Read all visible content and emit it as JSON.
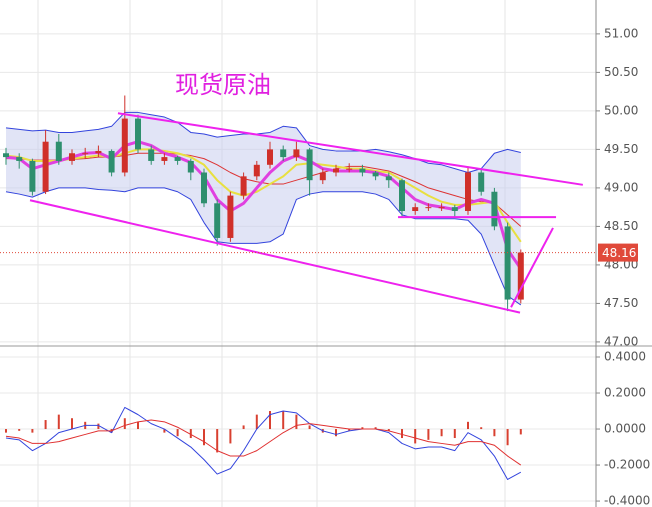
{
  "chart_data": [
    {
      "type": "candlestick",
      "title": "现货原油",
      "title_color": "#e020e0",
      "open": [
        49.45,
        49.4,
        49.35,
        48.95,
        49.6,
        49.35,
        49.45,
        49.45,
        49.48,
        49.2,
        49.9,
        49.5,
        49.35,
        49.4,
        49.35,
        49.2,
        48.8,
        48.35,
        48.9,
        49.15,
        49.3,
        49.5,
        49.4,
        49.5,
        49.1,
        49.2,
        49.25,
        49.25,
        49.2,
        49.15,
        49.1,
        48.7,
        48.75,
        48.75,
        48.75,
        48.7,
        49.2,
        48.95,
        48.5,
        47.55
      ],
      "high": [
        49.52,
        49.45,
        49.38,
        49.75,
        49.7,
        49.5,
        49.52,
        49.55,
        49.5,
        50.2,
        49.95,
        49.55,
        49.45,
        49.42,
        49.38,
        49.25,
        48.85,
        48.95,
        49.2,
        49.35,
        49.6,
        49.55,
        49.6,
        49.52,
        49.25,
        49.3,
        49.32,
        49.3,
        49.22,
        49.2,
        49.12,
        48.8,
        48.8,
        48.8,
        48.78,
        49.28,
        49.25,
        49.0,
        48.55,
        48.2
      ],
      "low": [
        49.3,
        49.25,
        48.9,
        48.92,
        49.3,
        49.3,
        49.38,
        49.4,
        49.15,
        49.15,
        49.45,
        49.3,
        49.3,
        49.3,
        49.1,
        48.75,
        48.25,
        48.3,
        48.85,
        49.1,
        49.25,
        49.35,
        49.35,
        48.9,
        49.05,
        49.15,
        49.2,
        49.15,
        49.1,
        49.0,
        48.62,
        48.65,
        48.7,
        48.7,
        48.62,
        48.65,
        48.9,
        48.45,
        47.4,
        47.5
      ],
      "close": [
        49.4,
        49.35,
        48.95,
        49.6,
        49.35,
        49.45,
        49.45,
        49.48,
        49.2,
        49.9,
        49.5,
        49.35,
        49.4,
        49.35,
        49.2,
        48.8,
        48.35,
        48.9,
        49.15,
        49.3,
        49.5,
        49.4,
        49.5,
        49.1,
        49.2,
        49.25,
        49.25,
        49.2,
        49.15,
        49.1,
        48.7,
        48.75,
        48.75,
        48.75,
        48.7,
        49.2,
        48.95,
        48.5,
        47.55,
        48.16
      ],
      "up_color": "#d0302a",
      "down_color": "#2e8f6e",
      "bands": {
        "color": "#3344dd",
        "fill": "#c9cdee",
        "upper": [
          49.78,
          49.76,
          49.74,
          49.75,
          49.72,
          49.72,
          49.74,
          49.76,
          49.8,
          49.98,
          49.98,
          49.95,
          49.92,
          49.85,
          49.72,
          49.7,
          49.66,
          49.68,
          49.7,
          49.7,
          49.72,
          49.8,
          49.78,
          49.55,
          49.5,
          49.48,
          49.48,
          49.48,
          49.5,
          49.47,
          49.43,
          49.38,
          49.32,
          49.3,
          49.25,
          49.2,
          49.25,
          49.45,
          49.5,
          49.46
        ],
        "lower": [
          48.95,
          48.92,
          48.88,
          48.95,
          49.0,
          49.0,
          49.0,
          48.98,
          48.97,
          48.95,
          49.0,
          49.0,
          49.0,
          48.95,
          48.85,
          48.55,
          48.3,
          48.28,
          48.28,
          48.28,
          48.3,
          48.4,
          48.85,
          48.92,
          48.95,
          48.95,
          48.95,
          48.95,
          48.92,
          48.85,
          48.65,
          48.6,
          48.6,
          48.6,
          48.6,
          48.58,
          48.4,
          48.0,
          47.6,
          47.48
        ]
      },
      "lines": [
        {
          "color": "#d33",
          "width": 1,
          "values": [
            49.38,
            49.38,
            49.36,
            49.36,
            49.36,
            49.37,
            49.38,
            49.4,
            49.4,
            49.42,
            49.45,
            49.45,
            49.45,
            49.44,
            49.42,
            49.38,
            49.3,
            49.2,
            49.12,
            49.08,
            49.05,
            49.05,
            49.1,
            49.15,
            49.2,
            49.25,
            49.28,
            49.28,
            49.25,
            49.22,
            49.15,
            49.08,
            49.0,
            48.95,
            48.9,
            48.85,
            48.82,
            48.8,
            48.65,
            48.5
          ]
        },
        {
          "color": "#e8e040",
          "width": 2,
          "values": [
            49.42,
            49.4,
            49.35,
            49.35,
            49.35,
            49.38,
            49.4,
            49.42,
            49.4,
            49.45,
            49.5,
            49.5,
            49.48,
            49.45,
            49.4,
            49.3,
            49.1,
            48.95,
            48.9,
            48.95,
            49.05,
            49.15,
            49.3,
            49.32,
            49.3,
            49.28,
            49.25,
            49.25,
            49.22,
            49.2,
            49.1,
            49.0,
            48.9,
            48.82,
            48.78,
            48.78,
            48.8,
            48.82,
            48.55,
            48.3
          ]
        },
        {
          "color": "#e040e0",
          "width": 3,
          "values": [
            49.4,
            49.38,
            49.25,
            49.3,
            49.35,
            49.4,
            49.45,
            49.46,
            49.38,
            49.55,
            49.6,
            49.55,
            49.45,
            49.4,
            49.33,
            49.15,
            48.85,
            48.7,
            48.8,
            49.0,
            49.2,
            49.35,
            49.42,
            49.35,
            49.25,
            49.22,
            49.22,
            49.22,
            49.2,
            49.15,
            49.0,
            48.85,
            48.78,
            48.75,
            48.72,
            48.8,
            48.85,
            48.8,
            48.2,
            47.95
          ]
        }
      ],
      "trendlines": [
        {
          "color": "#ee22ee",
          "x": [
            8.48,
            43.7
          ],
          "y": [
            49.97,
            49.04
          ]
        },
        {
          "color": "#ee22ee",
          "x": [
            1.82,
            38.94
          ],
          "y": [
            48.84,
            47.38
          ]
        },
        {
          "color": "#ee22ee",
          "x": [
            29.7,
            41.67
          ],
          "y": [
            48.62,
            48.62
          ]
        },
        {
          "color": "#ee22ee",
          "x": [
            38.26,
            41.44
          ],
          "y": [
            47.45,
            48.48
          ]
        }
      ],
      "last_price": 48.16,
      "last_color": "#e0493a",
      "ylim": [
        46.96,
        51.44
      ],
      "yticks": [
        {
          "value": 47,
          "label": "47.00"
        },
        {
          "value": 47.5,
          "label": "47.50"
        },
        {
          "value": 48,
          "label": "48.00"
        },
        {
          "value": 48.5,
          "label": "48.50"
        },
        {
          "value": 49,
          "label": "49.00"
        },
        {
          "value": 49.5,
          "label": "49.50"
        },
        {
          "value": 50,
          "label": "50.00"
        },
        {
          "value": 50.5,
          "label": "50.50"
        },
        {
          "value": 51,
          "label": "51.00"
        }
      ],
      "grid": true
    },
    {
      "type": "macd",
      "histogram": [
        -0.02,
        -0.01,
        -0.02,
        0.05,
        0.08,
        0.06,
        0.04,
        0.03,
        -0.02,
        0.06,
        0.04,
        0.0,
        -0.02,
        -0.04,
        -0.05,
        -0.09,
        -0.13,
        -0.08,
        0.02,
        0.08,
        0.1,
        0.1,
        0.08,
        0.02,
        -0.02,
        -0.04,
        -0.01,
        0.01,
        0.01,
        -0.01,
        -0.05,
        -0.08,
        -0.06,
        -0.04,
        -0.05,
        0.04,
        0.01,
        -0.04,
        -0.09,
        -0.03
      ],
      "hist_color": "#d84030",
      "dif": [
        -0.05,
        -0.06,
        -0.12,
        -0.08,
        -0.02,
        0.0,
        0.02,
        0.02,
        -0.02,
        0.12,
        0.08,
        0.03,
        0.0,
        -0.05,
        -0.1,
        -0.17,
        -0.25,
        -0.22,
        -0.12,
        0.0,
        0.08,
        0.1,
        0.09,
        0.03,
        -0.01,
        -0.03,
        -0.01,
        0.0,
        0.0,
        -0.02,
        -0.08,
        -0.11,
        -0.1,
        -0.1,
        -0.12,
        -0.02,
        -0.06,
        -0.15,
        -0.28,
        -0.24
      ],
      "dif_color": "#3344dd",
      "dea": [
        -0.04,
        -0.05,
        -0.08,
        -0.08,
        -0.07,
        -0.05,
        -0.03,
        -0.01,
        -0.01,
        0.02,
        0.04,
        0.05,
        0.04,
        0.01,
        -0.03,
        -0.07,
        -0.12,
        -0.15,
        -0.15,
        -0.12,
        -0.07,
        -0.02,
        0.02,
        0.03,
        0.02,
        0.01,
        0.0,
        0.0,
        0.0,
        -0.01,
        -0.03,
        -0.05,
        -0.07,
        -0.08,
        -0.09,
        -0.07,
        -0.07,
        -0.09,
        -0.15,
        -0.2
      ],
      "dea_color": "#e03030",
      "ylim": [
        -0.433,
        0.45
      ],
      "yticks": [
        {
          "value": -0.4,
          "label": "-0.4000"
        },
        {
          "value": -0.2,
          "label": "-0.2000"
        },
        {
          "value": 0,
          "label": "0.0000"
        },
        {
          "value": 0.2,
          "label": "0.2000"
        },
        {
          "value": 0.4,
          "label": "0.4000"
        }
      ],
      "grid": true
    }
  ]
}
